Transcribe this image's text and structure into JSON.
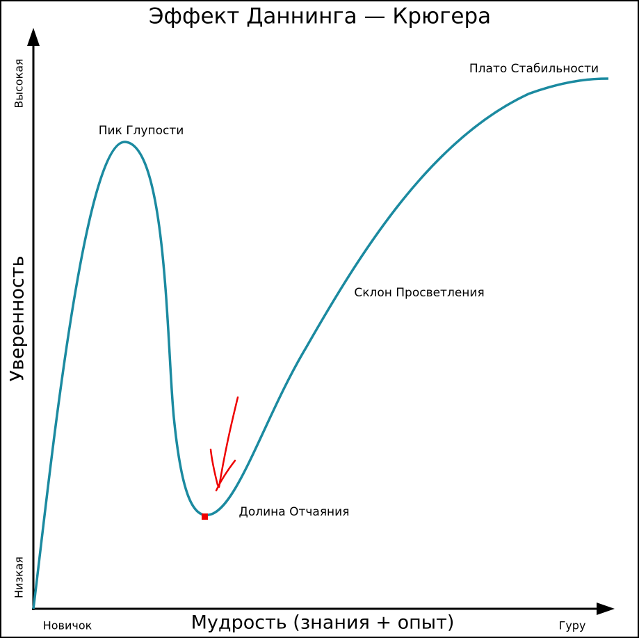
{
  "title": "Эффект Даннинга — Крюгера",
  "axes": {
    "y_label": "Уверенность",
    "y_high": "Высокая",
    "y_low": "Низкая",
    "x_label": "Мудрость (знания + опыт)",
    "x_start": "Новичок",
    "x_end": "Гуру"
  },
  "annotations": [
    "Пик Глупости",
    "Склон Просветления",
    "Долина Отчаяния",
    "Плато Стабильности"
  ]
}
